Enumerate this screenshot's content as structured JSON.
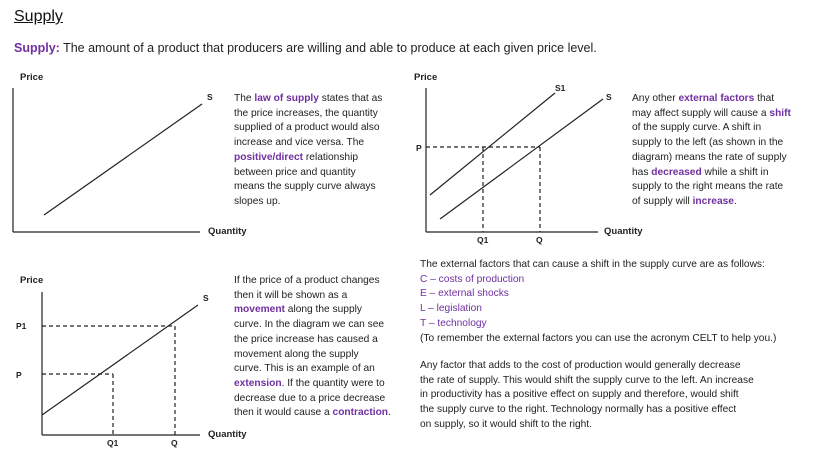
{
  "title": "Supply",
  "definition": {
    "term": "Supply:",
    "text": " The amount of a product that producers are willing and able to produce at each given price level."
  },
  "diagram1": {
    "price_label": "Price",
    "quantity_label": "Quantity",
    "curve_label": "S"
  },
  "diagram2": {
    "price_label": "Price",
    "quantity_label": "Quantity",
    "curve_labels": [
      "S",
      "S1"
    ],
    "p_label": "P",
    "q_labels": [
      "Q1",
      "Q"
    ]
  },
  "diagram3": {
    "price_label": "Price",
    "quantity_label": "Quantity",
    "curve_label": "S",
    "p_labels": [
      "P1",
      "P"
    ],
    "q_labels": [
      "Q1",
      "Q"
    ]
  },
  "para1": {
    "line1_pre": "The ",
    "line1_term": "law of supply",
    "line1_post": " states that as",
    "line2": "the price increases, the quantity",
    "line3": "supplied of a product would also",
    "line4": "increase and vice versa. The",
    "line5_term": "positive/direct",
    "line5_post": " relationship",
    "line6": "between price and quantity",
    "line7": "means the supply curve always",
    "line8": "slopes up."
  },
  "para2": {
    "line1_pre": "Any other ",
    "line1_term": "external factors",
    "line1_post": " that",
    "line2_pre": "may affect supply will cause a ",
    "line2_term": "shift",
    "line3": "of the supply curve. A shift in",
    "line4": "supply to the left (as shown in the",
    "line5": "diagram) means the rate of supply",
    "line6_pre": "has ",
    "line6_term": "decreased",
    "line6_post": " while a shift in",
    "line7": "supply to the right means the rate",
    "line8_pre": "of supply will ",
    "line8_term": "increase",
    "line8_post": "."
  },
  "para3": {
    "line1": "If the price of a product changes",
    "line2": "then it will be shown as a",
    "line3_term": "movement",
    "line3_post": " along the supply",
    "line4": "curve. In the diagram we can see",
    "line5": "the price increase has caused a",
    "line6": "movement along the supply",
    "line7": "curve. This is an example of an",
    "line8_term": "extension",
    "line8_post": ". If the quantity were to",
    "line9": "decrease due to a price decrease",
    "line10_pre": "then it would cause a ",
    "line10_term": "contraction",
    "line10_post": "."
  },
  "celt": {
    "intro": "The external factors that can cause a shift in the supply curve are as follows:",
    "items": [
      "C – costs of production",
      "E – external shocks",
      "L – legislation",
      "T – technology"
    ],
    "note": "(To remember the external factors you can use the acronym CELT to help you.)"
  },
  "para4": {
    "line1": "Any factor that adds to the cost of production would generally decrease",
    "line2": "the rate of supply. This would shift  the supply curve to the left. An increase",
    "line3": "in productivity has a positive effect on supply and therefore, would shift",
    "line4": "the supply curve to the right. Technology normally has a positive effect",
    "line5": "on supply, so it would shift to the right."
  }
}
